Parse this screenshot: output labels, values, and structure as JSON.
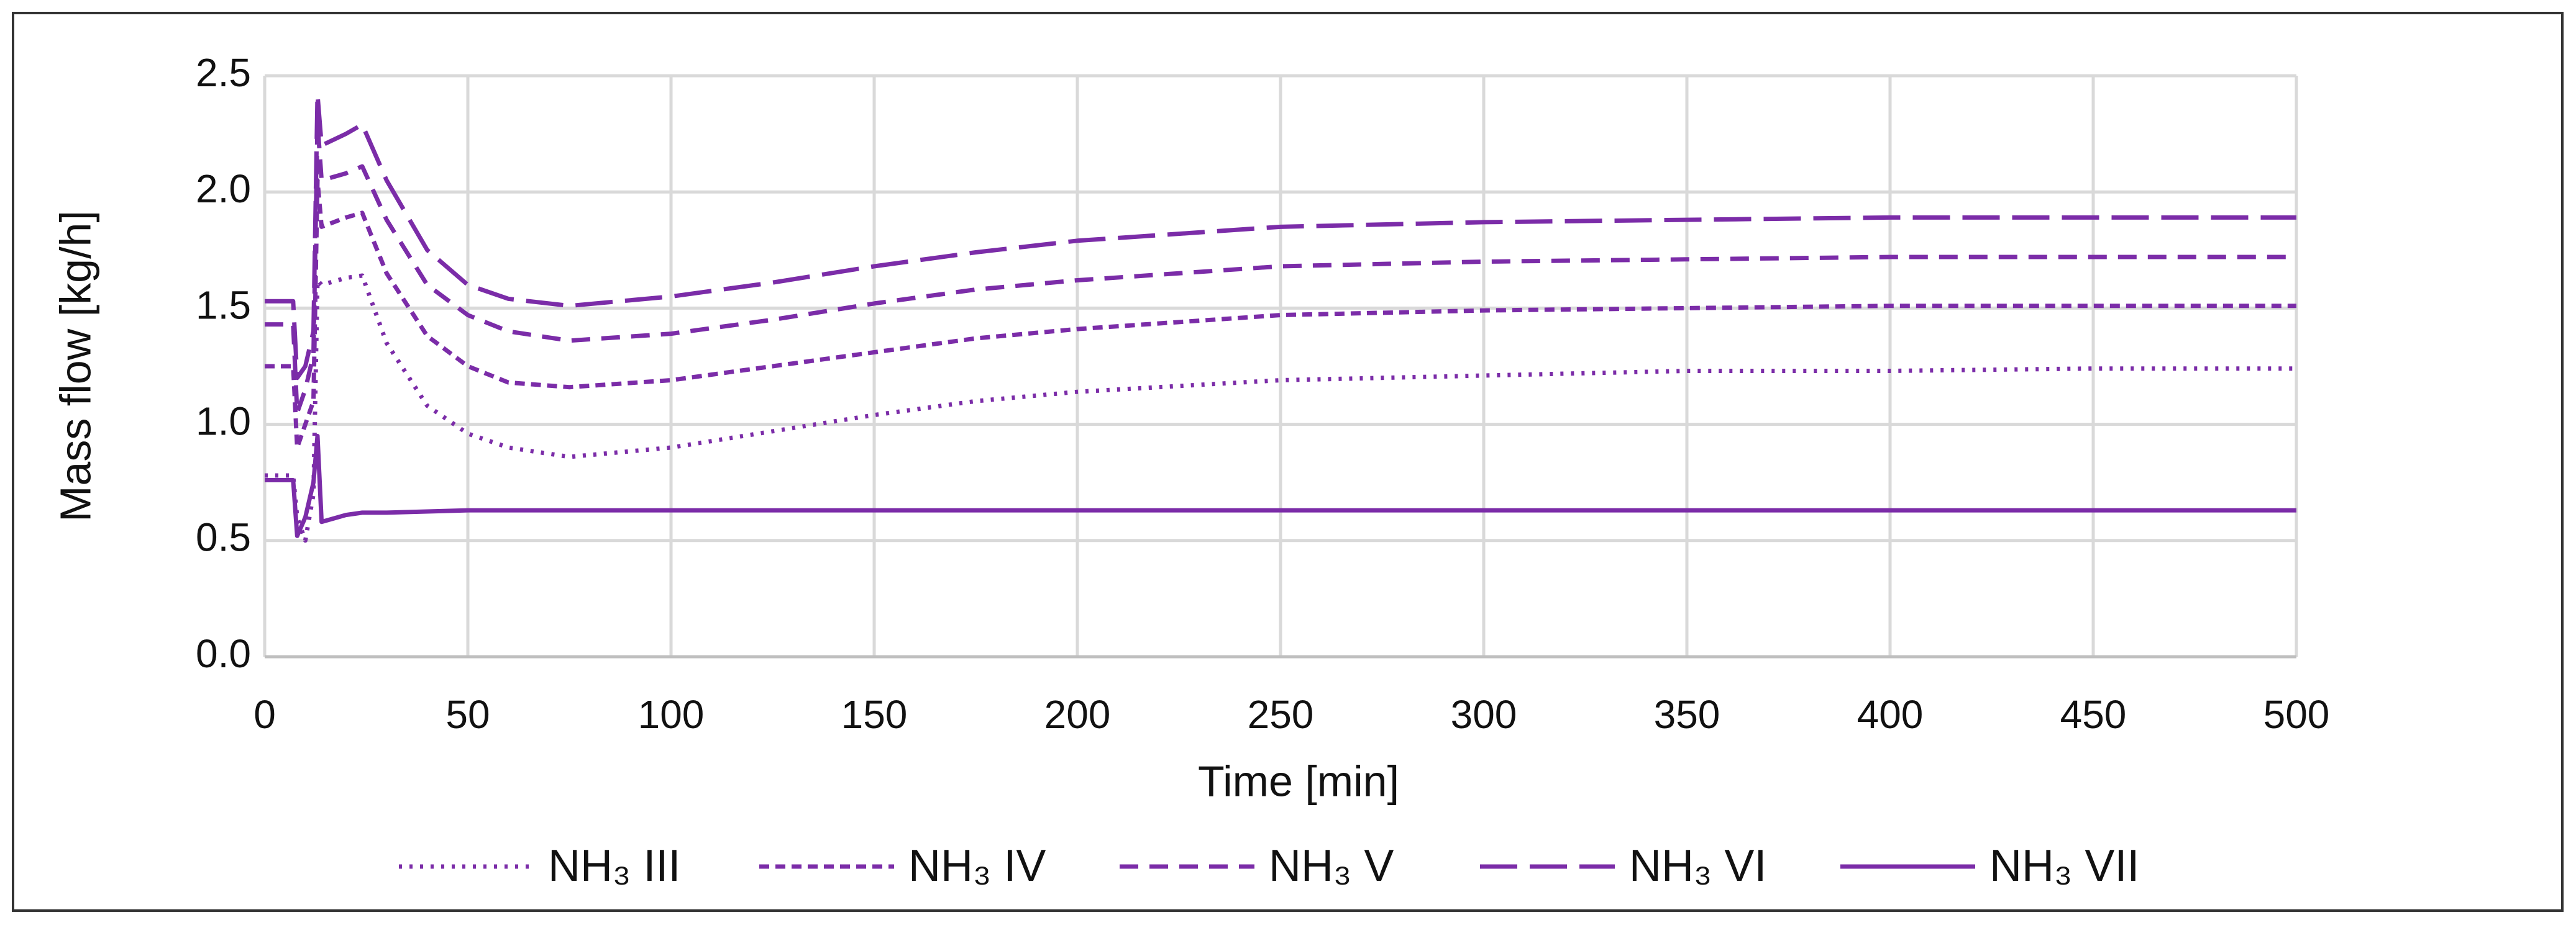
{
  "chart_data": {
    "type": "line",
    "x_label": "Time [min]",
    "y_label": "Mass flow [kg/h]",
    "x": [
      0,
      7,
      8,
      10,
      12,
      13,
      14,
      20,
      24,
      30,
      40,
      50,
      60,
      75,
      100,
      125,
      150,
      175,
      200,
      250,
      300,
      350,
      400,
      450,
      500
    ],
    "series": [
      {
        "name": "NH₃ III",
        "color": "#7b2ca8",
        "dash": "5,12",
        "values": [
          0.78,
          0.78,
          0.6,
          0.5,
          0.7,
          1.62,
          1.6,
          1.63,
          1.64,
          1.35,
          1.08,
          0.96,
          0.9,
          0.86,
          0.9,
          0.97,
          1.04,
          1.1,
          1.14,
          1.19,
          1.21,
          1.23,
          1.23,
          1.24,
          1.24
        ]
      },
      {
        "name": "NH₃ IV",
        "color": "#7b2ca8",
        "dash": "16,10",
        "values": [
          1.25,
          1.25,
          0.9,
          1.0,
          1.1,
          2.05,
          1.85,
          1.89,
          1.91,
          1.65,
          1.38,
          1.25,
          1.18,
          1.16,
          1.19,
          1.25,
          1.31,
          1.37,
          1.41,
          1.47,
          1.49,
          1.5,
          1.51,
          1.51,
          1.51
        ]
      },
      {
        "name": "NH₃ V",
        "color": "#7b2ca8",
        "dash": "30,18",
        "values": [
          1.43,
          1.43,
          1.05,
          1.15,
          1.3,
          2.3,
          2.05,
          2.08,
          2.11,
          1.88,
          1.6,
          1.47,
          1.4,
          1.36,
          1.39,
          1.45,
          1.52,
          1.58,
          1.62,
          1.68,
          1.7,
          1.71,
          1.72,
          1.72,
          1.72
        ]
      },
      {
        "name": "NH₃ VI",
        "color": "#7b2ca8",
        "dash": "60,20",
        "values": [
          1.53,
          1.53,
          1.2,
          1.25,
          1.4,
          2.42,
          2.2,
          2.25,
          2.29,
          2.05,
          1.75,
          1.6,
          1.54,
          1.51,
          1.55,
          1.61,
          1.68,
          1.74,
          1.79,
          1.85,
          1.87,
          1.88,
          1.89,
          1.89,
          1.89
        ]
      },
      {
        "name": "NH₃ VII",
        "color": "#7b2ca8",
        "dash": "none",
        "values": [
          0.76,
          0.76,
          0.52,
          0.6,
          0.75,
          0.95,
          0.58,
          0.61,
          0.62,
          0.62,
          0.625,
          0.63,
          0.63,
          0.63,
          0.63,
          0.63,
          0.63,
          0.63,
          0.63,
          0.63,
          0.63,
          0.63,
          0.63,
          0.63,
          0.63
        ]
      }
    ],
    "xlim": [
      0,
      500
    ],
    "xticks": [
      0,
      50,
      100,
      150,
      200,
      250,
      300,
      350,
      400,
      450,
      500
    ],
    "ylim": [
      0,
      2.5
    ],
    "yticks": [
      {
        "value": 0,
        "label": "0.0"
      },
      0.5,
      {
        "value": 1,
        "label": "1.0"
      },
      1.5,
      {
        "value": 2,
        "label": "2.0"
      },
      2.5
    ],
    "grid": true,
    "legend": "bottom"
  }
}
